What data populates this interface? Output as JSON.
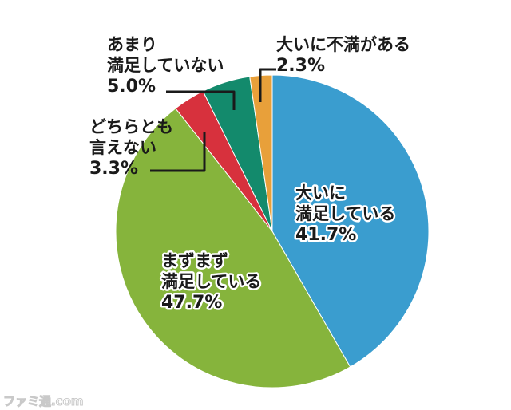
{
  "chart_data": {
    "type": "pie",
    "title": "",
    "slices": [
      {
        "label": [
          "大いに",
          "満足している"
        ],
        "value": 41.7,
        "value_text": "41.7%",
        "color": "#3a9dcf"
      },
      {
        "label": [
          "まずまず",
          "満足している"
        ],
        "value": 47.7,
        "value_text": "47.7%",
        "color": "#86b43c"
      },
      {
        "label": [
          "どちらとも",
          "言えない"
        ],
        "value": 3.3,
        "value_text": "3.3%",
        "color": "#d7313d"
      },
      {
        "label": [
          "あまり",
          "満足していない"
        ],
        "value": 5.0,
        "value_text": "5.0%",
        "color": "#138a6c"
      },
      {
        "label": [
          "大いに不満がある"
        ],
        "value": 2.3,
        "value_text": "2.3%",
        "color": "#e8a03a"
      }
    ]
  },
  "watermark": "ファミ通.com"
}
